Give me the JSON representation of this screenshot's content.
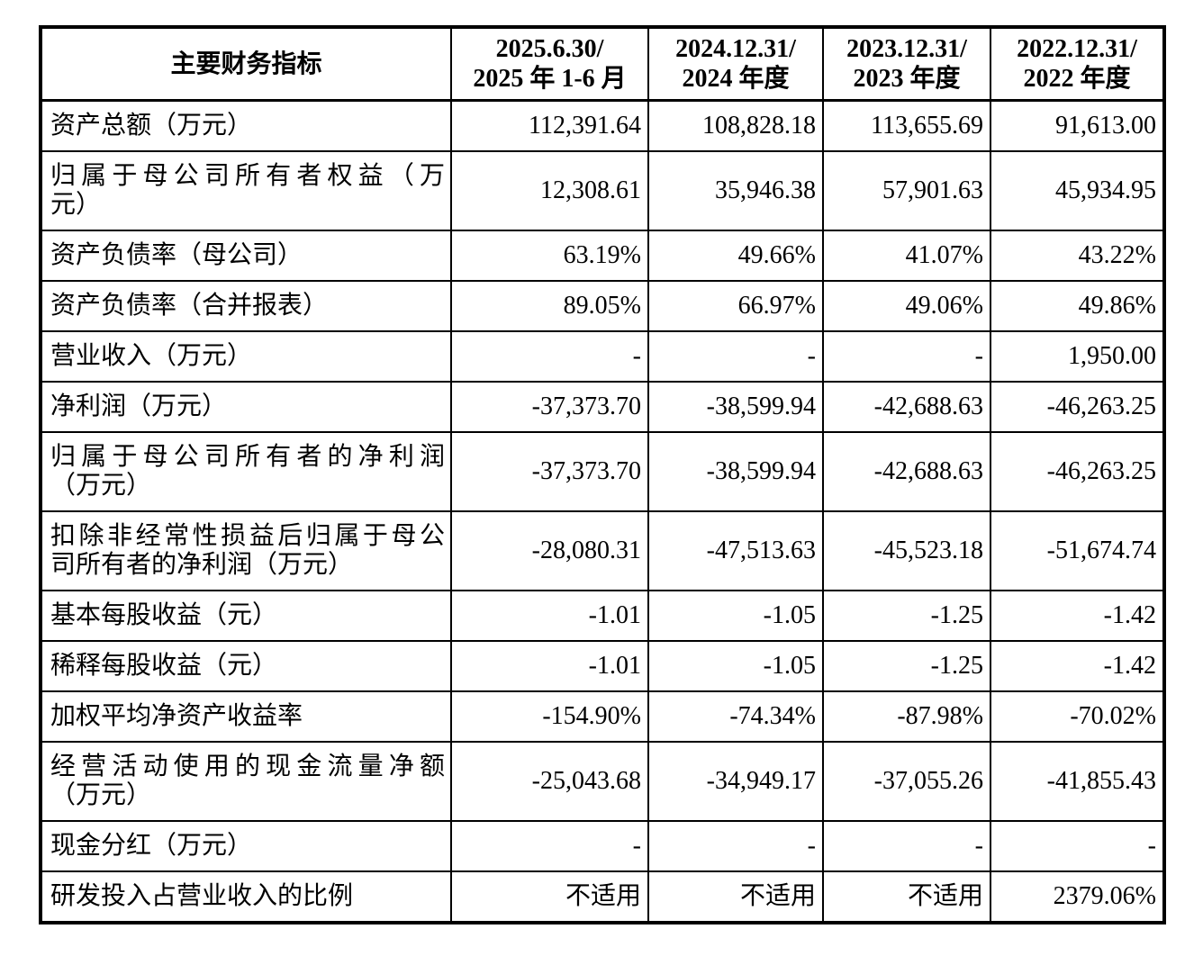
{
  "table": {
    "header": {
      "indicator_col": "主要财务指标",
      "periods": [
        {
          "line1": "2025.6.30/",
          "line2": "2025 年 1-6 月"
        },
        {
          "line1": "2024.12.31/",
          "line2": "2024 年度"
        },
        {
          "line1": "2023.12.31/",
          "line2": "2023 年度"
        },
        {
          "line1": "2022.12.31/",
          "line2": "2022 年度"
        }
      ]
    },
    "rows": [
      {
        "label": "资产总额（万元）",
        "values": [
          "112,391.64",
          "108,828.18",
          "113,655.69",
          "91,613.00"
        ]
      },
      {
        "label": "归属于母公司所有者权益（万\n元）",
        "values": [
          "12,308.61",
          "35,946.38",
          "57,901.63",
          "45,934.95"
        ]
      },
      {
        "label": "资产负债率（母公司）",
        "values": [
          "63.19%",
          "49.66%",
          "41.07%",
          "43.22%"
        ]
      },
      {
        "label": "资产负债率（合并报表）",
        "values": [
          "89.05%",
          "66.97%",
          "49.06%",
          "49.86%"
        ]
      },
      {
        "label": "营业收入（万元）",
        "values": [
          "-",
          "-",
          "-",
          "1,950.00"
        ]
      },
      {
        "label": "净利润（万元）",
        "values": [
          "-37,373.70",
          "-38,599.94",
          "-42,688.63",
          "-46,263.25"
        ]
      },
      {
        "label": "归属于母公司所有者的净利润\n（万元）",
        "values": [
          "-37,373.70",
          "-38,599.94",
          "-42,688.63",
          "-46,263.25"
        ]
      },
      {
        "label": "扣除非经常性损益后归属于母公\n司所有者的净利润（万元）",
        "values": [
          "-28,080.31",
          "-47,513.63",
          "-45,523.18",
          "-51,674.74"
        ]
      },
      {
        "label": "基本每股收益（元）",
        "values": [
          "-1.01",
          "-1.05",
          "-1.25",
          "-1.42"
        ]
      },
      {
        "label": "稀释每股收益（元）",
        "values": [
          "-1.01",
          "-1.05",
          "-1.25",
          "-1.42"
        ]
      },
      {
        "label": "加权平均净资产收益率",
        "values": [
          "-154.90%",
          "-74.34%",
          "-87.98%",
          "-70.02%"
        ]
      },
      {
        "label": "经营活动使用的现金流量净额\n（万元）",
        "values": [
          "-25,043.68",
          "-34,949.17",
          "-37,055.26",
          "-41,855.43"
        ]
      },
      {
        "label": "现金分红（万元）",
        "values": [
          "-",
          "-",
          "-",
          "-"
        ]
      },
      {
        "label": "研发投入占营业收入的比例",
        "values": [
          "不适用",
          "不适用",
          "不适用",
          "2379.06%"
        ]
      }
    ]
  }
}
